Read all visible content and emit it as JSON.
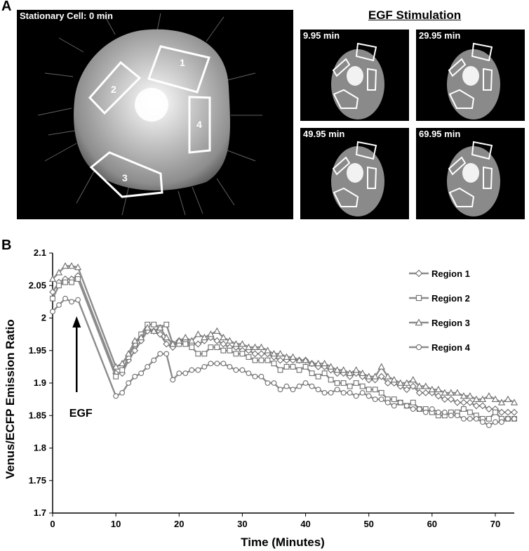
{
  "figure": {
    "panel_a_letter": "A",
    "panel_b_letter": "B",
    "stationary_label": "Stationary Cell: 0 min",
    "stimulation_heading": "EGF Stimulation",
    "time_labels": [
      "9.95 min",
      "29.95 min",
      "49.95 min",
      "69.95 min"
    ],
    "roi_labels": [
      "1",
      "2",
      "3",
      "4"
    ]
  },
  "chart_data": {
    "type": "line",
    "xlabel": "Time (Minutes)",
    "ylabel": "Venus/ECFP Emission Ratio",
    "xlim": [
      0,
      73
    ],
    "ylim": [
      1.7,
      2.1
    ],
    "xticks": [
      0,
      10,
      20,
      30,
      40,
      50,
      60,
      70
    ],
    "yticks": [
      1.7,
      1.75,
      1.8,
      1.85,
      1.9,
      1.95,
      2,
      2.05,
      2.1
    ],
    "ytick_labels": [
      "1.7",
      "1.75",
      "1.8",
      "1.85",
      "1.9",
      "1.95",
      "2",
      "2.05",
      "2.1"
    ],
    "grid": false,
    "legend_position": "top-right",
    "annotation": "EGF",
    "series": [
      {
        "name": "Region 1",
        "marker": "diamond",
        "color": "#8c8c8c",
        "points": [
          [
            0,
            2.04
          ],
          [
            1,
            2.055
          ],
          [
            2,
            2.06
          ],
          [
            3,
            2.06
          ],
          [
            4,
            2.065
          ],
          [
            10,
            1.915
          ],
          [
            11,
            1.915
          ],
          [
            12,
            1.935
          ],
          [
            13,
            1.95
          ],
          [
            14,
            1.965
          ],
          [
            15,
            1.98
          ],
          [
            16,
            1.98
          ],
          [
            17,
            1.975
          ],
          [
            18,
            1.96
          ],
          [
            19,
            1.955
          ],
          [
            20,
            1.965
          ],
          [
            21,
            1.965
          ],
          [
            22,
            1.96
          ],
          [
            23,
            1.96
          ],
          [
            24,
            1.965
          ],
          [
            25,
            1.97
          ],
          [
            26,
            1.965
          ],
          [
            27,
            1.96
          ],
          [
            28,
            1.955
          ],
          [
            29,
            1.955
          ],
          [
            30,
            1.95
          ],
          [
            31,
            1.95
          ],
          [
            32,
            1.945
          ],
          [
            33,
            1.945
          ],
          [
            34,
            1.945
          ],
          [
            35,
            1.94
          ],
          [
            36,
            1.935
          ],
          [
            37,
            1.935
          ],
          [
            38,
            1.935
          ],
          [
            39,
            1.935
          ],
          [
            40,
            1.935
          ],
          [
            41,
            1.93
          ],
          [
            42,
            1.925
          ],
          [
            43,
            1.925
          ],
          [
            44,
            1.92
          ],
          [
            45,
            1.915
          ],
          [
            46,
            1.915
          ],
          [
            47,
            1.91
          ],
          [
            48,
            1.915
          ],
          [
            49,
            1.91
          ],
          [
            50,
            1.905
          ],
          [
            51,
            1.905
          ],
          [
            52,
            1.91
          ],
          [
            53,
            1.9
          ],
          [
            54,
            1.9
          ],
          [
            55,
            1.895
          ],
          [
            56,
            1.89
          ],
          [
            57,
            1.895
          ],
          [
            58,
            1.885
          ],
          [
            59,
            1.885
          ],
          [
            60,
            1.885
          ],
          [
            61,
            1.88
          ],
          [
            62,
            1.875
          ],
          [
            63,
            1.875
          ],
          [
            64,
            1.87
          ],
          [
            65,
            1.87
          ],
          [
            66,
            1.87
          ],
          [
            67,
            1.865
          ],
          [
            68,
            1.865
          ],
          [
            69,
            1.86
          ],
          [
            70,
            1.86
          ],
          [
            71,
            1.855
          ],
          [
            72,
            1.855
          ],
          [
            73,
            1.855
          ]
        ]
      },
      {
        "name": "Region 2",
        "marker": "square",
        "color": "#8c8c8c",
        "points": [
          [
            0,
            2.03
          ],
          [
            1,
            2.05
          ],
          [
            2,
            2.055
          ],
          [
            3,
            2.055
          ],
          [
            4,
            2.06
          ],
          [
            10,
            1.91
          ],
          [
            11,
            1.92
          ],
          [
            12,
            1.94
          ],
          [
            13,
            1.96
          ],
          [
            14,
            1.975
          ],
          [
            15,
            1.99
          ],
          [
            16,
            1.99
          ],
          [
            17,
            1.985
          ],
          [
            18,
            1.99
          ],
          [
            19,
            1.96
          ],
          [
            20,
            1.96
          ],
          [
            21,
            1.96
          ],
          [
            22,
            1.955
          ],
          [
            23,
            1.945
          ],
          [
            24,
            1.945
          ],
          [
            25,
            1.955
          ],
          [
            26,
            1.955
          ],
          [
            27,
            1.95
          ],
          [
            28,
            1.95
          ],
          [
            29,
            1.945
          ],
          [
            30,
            1.945
          ],
          [
            31,
            1.94
          ],
          [
            32,
            1.935
          ],
          [
            33,
            1.935
          ],
          [
            34,
            1.935
          ],
          [
            35,
            1.93
          ],
          [
            36,
            1.92
          ],
          [
            37,
            1.925
          ],
          [
            38,
            1.925
          ],
          [
            39,
            1.92
          ],
          [
            40,
            1.925
          ],
          [
            41,
            1.915
          ],
          [
            42,
            1.91
          ],
          [
            43,
            1.915
          ],
          [
            44,
            1.905
          ],
          [
            45,
            1.9
          ],
          [
            46,
            1.9
          ],
          [
            47,
            1.895
          ],
          [
            48,
            1.9
          ],
          [
            49,
            1.895
          ],
          [
            50,
            1.89
          ],
          [
            51,
            1.89
          ],
          [
            52,
            1.885
          ],
          [
            53,
            1.875
          ],
          [
            54,
            1.875
          ],
          [
            55,
            1.87
          ],
          [
            56,
            1.865
          ],
          [
            57,
            1.87
          ],
          [
            58,
            1.86
          ],
          [
            59,
            1.86
          ],
          [
            60,
            1.855
          ],
          [
            61,
            1.85
          ],
          [
            62,
            1.85
          ],
          [
            63,
            1.855
          ],
          [
            64,
            1.855
          ],
          [
            65,
            1.86
          ],
          [
            66,
            1.855
          ],
          [
            67,
            1.85
          ],
          [
            68,
            1.845
          ],
          [
            69,
            1.845
          ],
          [
            70,
            1.855
          ],
          [
            71,
            1.845
          ],
          [
            72,
            1.845
          ],
          [
            73,
            1.845
          ]
        ]
      },
      {
        "name": "Region 3",
        "marker": "triangle",
        "color": "#8c8c8c",
        "points": [
          [
            0,
            2.06
          ],
          [
            1,
            2.07
          ],
          [
            2,
            2.08
          ],
          [
            3,
            2.08
          ],
          [
            4,
            2.078
          ],
          [
            10,
            1.925
          ],
          [
            11,
            1.93
          ],
          [
            12,
            1.945
          ],
          [
            13,
            1.965
          ],
          [
            14,
            1.97
          ],
          [
            15,
            1.985
          ],
          [
            16,
            1.98
          ],
          [
            17,
            1.985
          ],
          [
            18,
            1.97
          ],
          [
            19,
            1.96
          ],
          [
            20,
            1.965
          ],
          [
            21,
            1.97
          ],
          [
            22,
            1.965
          ],
          [
            23,
            1.975
          ],
          [
            24,
            1.97
          ],
          [
            25,
            1.975
          ],
          [
            26,
            1.98
          ],
          [
            27,
            1.97
          ],
          [
            28,
            1.965
          ],
          [
            29,
            1.96
          ],
          [
            30,
            1.96
          ],
          [
            31,
            1.955
          ],
          [
            32,
            1.955
          ],
          [
            33,
            1.955
          ],
          [
            34,
            1.95
          ],
          [
            35,
            1.945
          ],
          [
            36,
            1.945
          ],
          [
            37,
            1.94
          ],
          [
            38,
            1.94
          ],
          [
            39,
            1.935
          ],
          [
            40,
            1.935
          ],
          [
            41,
            1.93
          ],
          [
            42,
            1.93
          ],
          [
            43,
            1.93
          ],
          [
            44,
            1.925
          ],
          [
            45,
            1.92
          ],
          [
            46,
            1.92
          ],
          [
            47,
            1.915
          ],
          [
            48,
            1.92
          ],
          [
            49,
            1.915
          ],
          [
            50,
            1.91
          ],
          [
            51,
            1.91
          ],
          [
            52,
            1.925
          ],
          [
            53,
            1.91
          ],
          [
            54,
            1.905
          ],
          [
            55,
            1.9
          ],
          [
            56,
            1.9
          ],
          [
            57,
            1.905
          ],
          [
            58,
            1.895
          ],
          [
            59,
            1.895
          ],
          [
            60,
            1.89
          ],
          [
            61,
            1.89
          ],
          [
            62,
            1.885
          ],
          [
            63,
            1.885
          ],
          [
            64,
            1.885
          ],
          [
            65,
            1.88
          ],
          [
            66,
            1.88
          ],
          [
            67,
            1.875
          ],
          [
            68,
            1.875
          ],
          [
            69,
            1.88
          ],
          [
            70,
            1.875
          ],
          [
            71,
            1.87
          ],
          [
            72,
            1.875
          ],
          [
            73,
            1.87
          ]
        ]
      },
      {
        "name": "Region 4",
        "marker": "circle",
        "color": "#8c8c8c",
        "points": [
          [
            0,
            2.01
          ],
          [
            1,
            2.02
          ],
          [
            2,
            2.03
          ],
          [
            3,
            2.025
          ],
          [
            4,
            2.028
          ],
          [
            10,
            1.88
          ],
          [
            11,
            1.885
          ],
          [
            12,
            1.9
          ],
          [
            13,
            1.91
          ],
          [
            14,
            1.915
          ],
          [
            15,
            1.925
          ],
          [
            16,
            1.935
          ],
          [
            17,
            1.945
          ],
          [
            18,
            1.945
          ],
          [
            19,
            1.905
          ],
          [
            20,
            1.915
          ],
          [
            21,
            1.915
          ],
          [
            22,
            1.92
          ],
          [
            23,
            1.92
          ],
          [
            24,
            1.925
          ],
          [
            25,
            1.93
          ],
          [
            26,
            1.93
          ],
          [
            27,
            1.93
          ],
          [
            28,
            1.925
          ],
          [
            29,
            1.92
          ],
          [
            30,
            1.92
          ],
          [
            31,
            1.915
          ],
          [
            32,
            1.91
          ],
          [
            33,
            1.91
          ],
          [
            34,
            1.9
          ],
          [
            35,
            1.9
          ],
          [
            36,
            1.89
          ],
          [
            37,
            1.895
          ],
          [
            38,
            1.89
          ],
          [
            39,
            1.895
          ],
          [
            40,
            1.9
          ],
          [
            41,
            1.895
          ],
          [
            42,
            1.89
          ],
          [
            43,
            1.885
          ],
          [
            44,
            1.885
          ],
          [
            45,
            1.89
          ],
          [
            46,
            1.885
          ],
          [
            47,
            1.885
          ],
          [
            48,
            1.88
          ],
          [
            49,
            1.885
          ],
          [
            50,
            1.88
          ],
          [
            51,
            1.875
          ],
          [
            52,
            1.875
          ],
          [
            53,
            1.87
          ],
          [
            54,
            1.865
          ],
          [
            55,
            1.87
          ],
          [
            56,
            1.865
          ],
          [
            57,
            1.86
          ],
          [
            58,
            1.86
          ],
          [
            59,
            1.855
          ],
          [
            60,
            1.86
          ],
          [
            61,
            1.855
          ],
          [
            62,
            1.855
          ],
          [
            63,
            1.85
          ],
          [
            64,
            1.85
          ],
          [
            65,
            1.845
          ],
          [
            66,
            1.845
          ],
          [
            67,
            1.845
          ],
          [
            68,
            1.84
          ],
          [
            69,
            1.835
          ],
          [
            70,
            1.84
          ],
          [
            71,
            1.84
          ],
          [
            72,
            1.845
          ],
          [
            73,
            1.845
          ]
        ]
      }
    ]
  }
}
